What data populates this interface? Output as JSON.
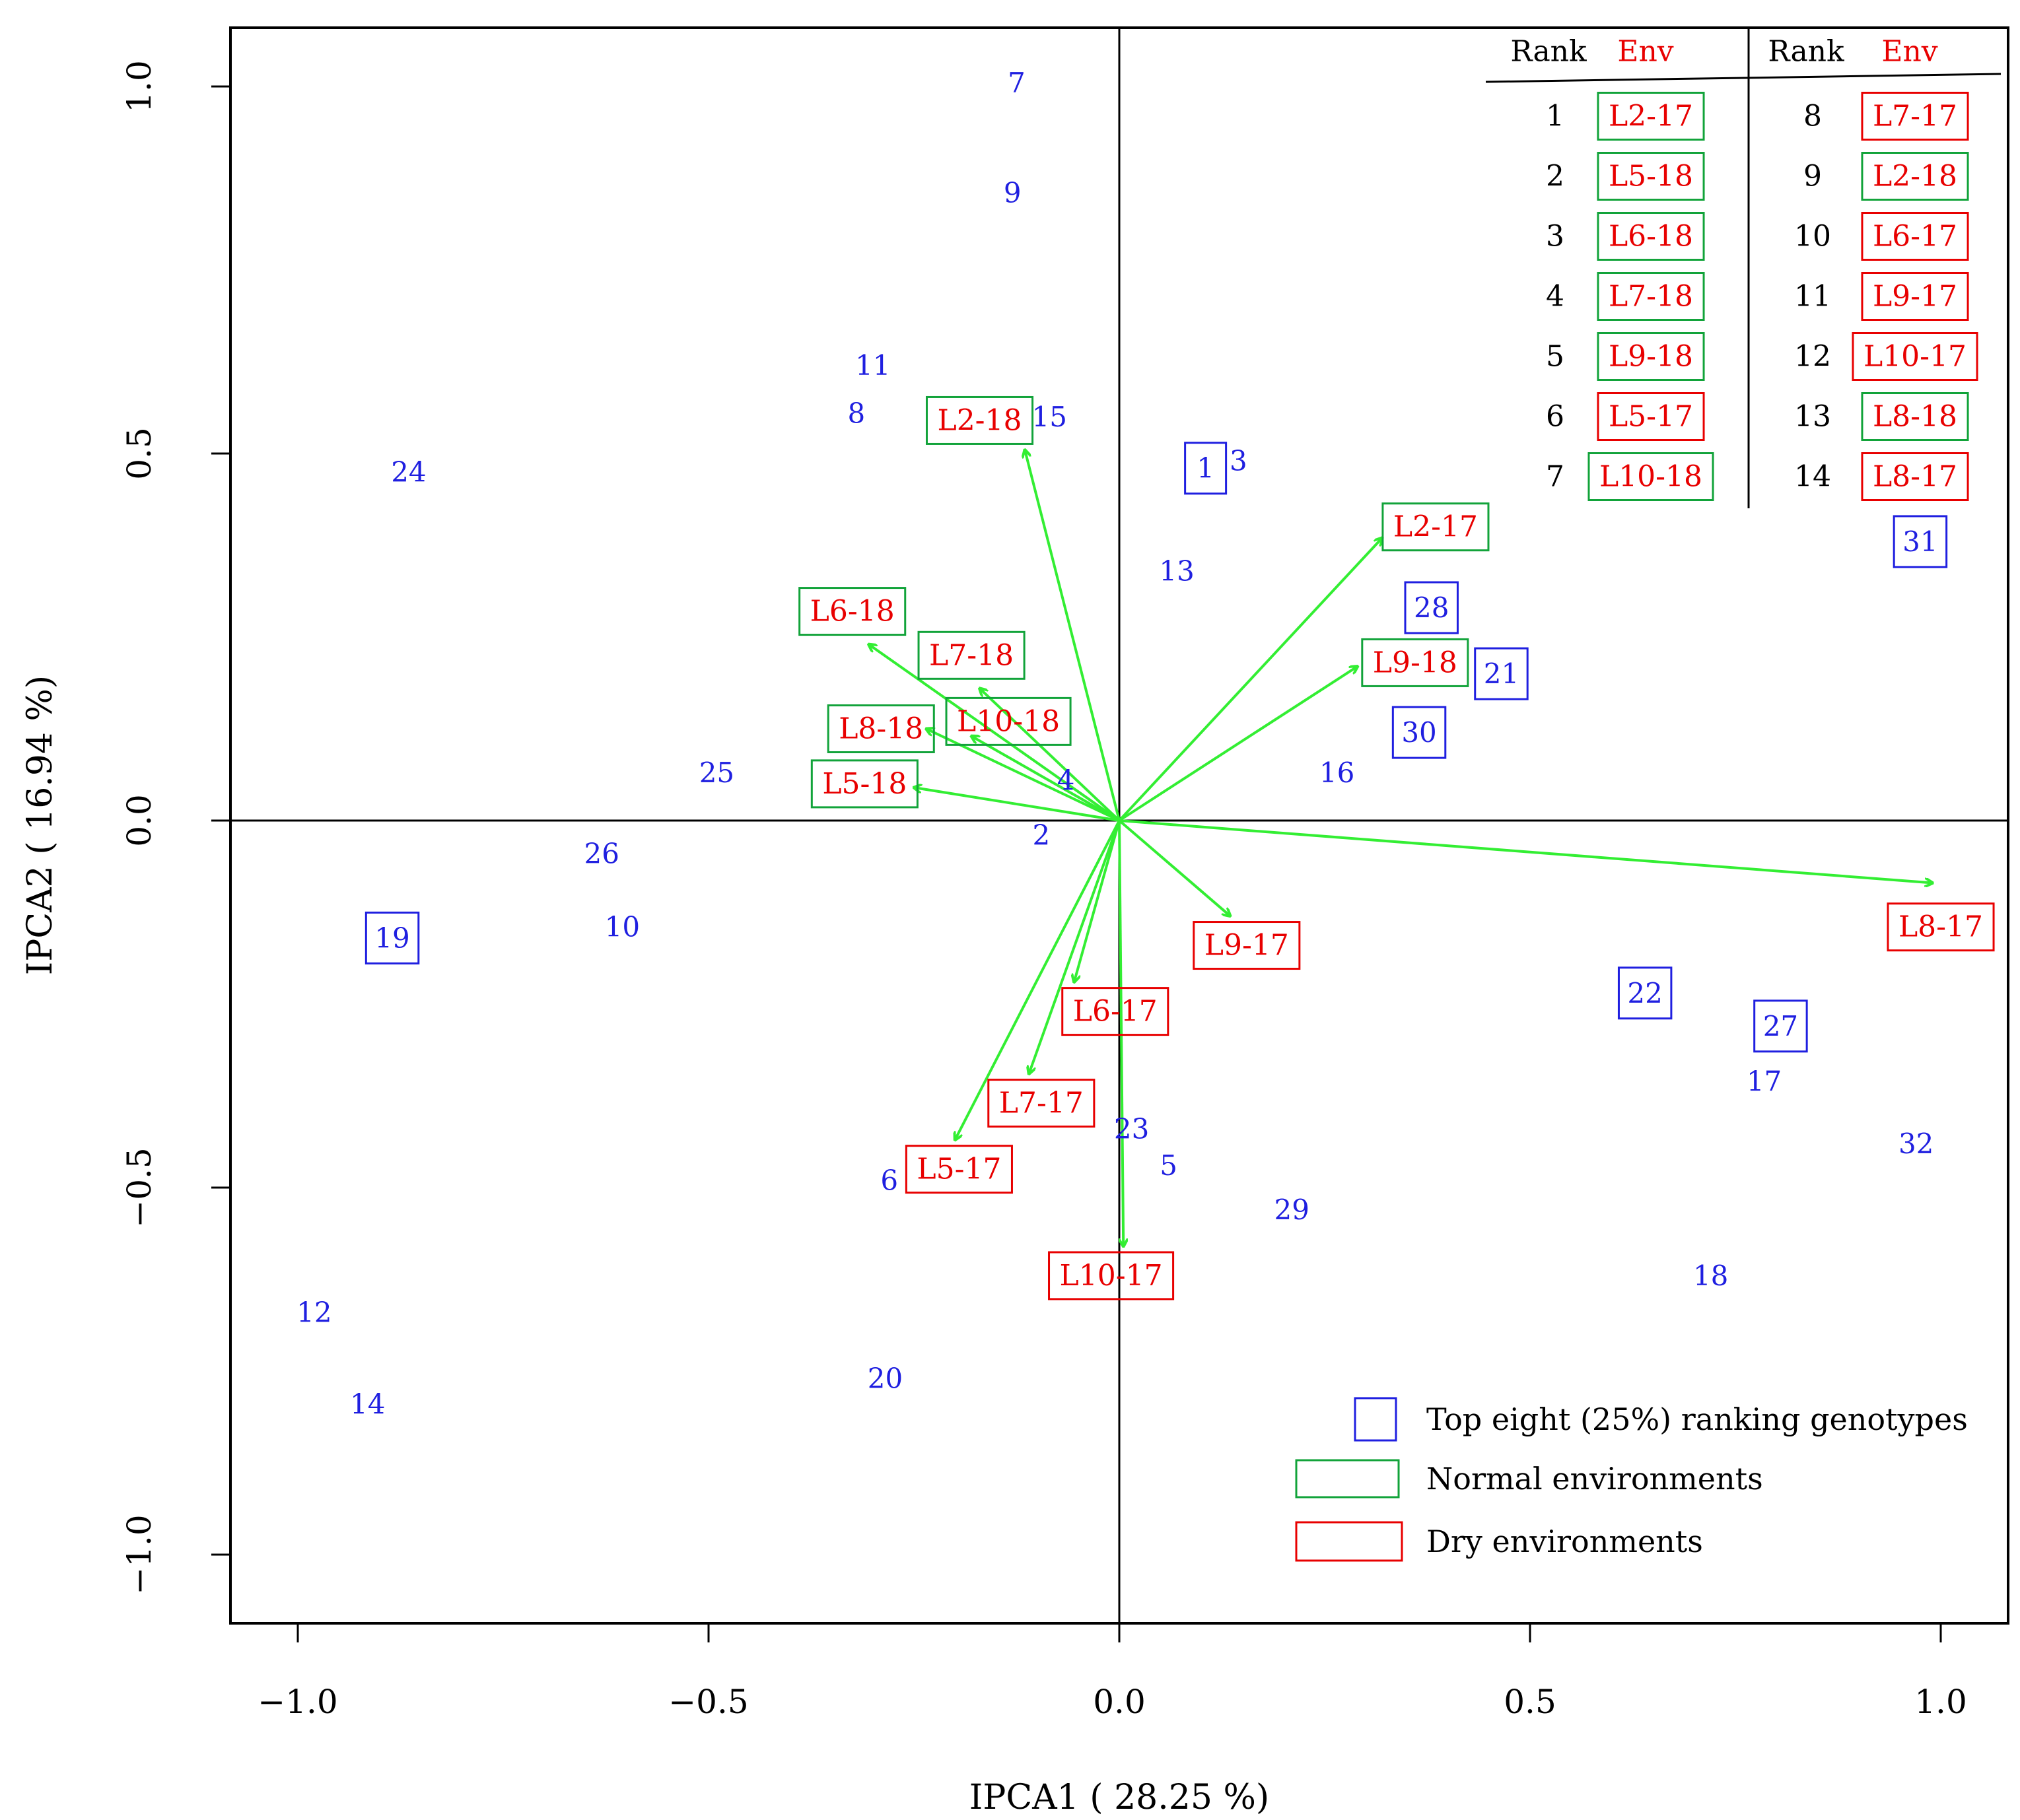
{
  "chart_data": {
    "type": "scatter",
    "subtype": "AMMI biplot",
    "xlabel": "IPCA1 ( 28.25 %)",
    "ylabel": "IPCA2 ( 16.94 %)",
    "xlim": [
      -1.08,
      1.08
    ],
    "ylim": [
      -1.08,
      1.08
    ],
    "xticks": [
      -1.0,
      -0.5,
      0.0,
      0.5,
      1.0
    ],
    "xtick_labels": [
      "−1.0",
      "−0.5",
      "0.0",
      "0.5",
      "1.0"
    ],
    "yticks": [
      -1.0,
      -0.5,
      0.0,
      0.5,
      1.0
    ],
    "ytick_labels": [
      "−1.0",
      "−0.5",
      "0.0",
      "0.5",
      "1.0"
    ],
    "genotypes": [
      {
        "label": "1",
        "x": 0.105,
        "y": 0.48,
        "top": true
      },
      {
        "label": "2",
        "x": -0.095,
        "y": -0.02,
        "top": false
      },
      {
        "label": "3",
        "x": 0.145,
        "y": 0.49,
        "top": false
      },
      {
        "label": "4",
        "x": -0.065,
        "y": 0.055,
        "top": false
      },
      {
        "label": "5",
        "x": 0.06,
        "y": -0.47,
        "top": false
      },
      {
        "label": "6",
        "x": -0.28,
        "y": -0.49,
        "top": false
      },
      {
        "label": "7",
        "x": -0.125,
        "y": 1.005,
        "top": false
      },
      {
        "label": "8",
        "x": -0.32,
        "y": 0.555,
        "top": false
      },
      {
        "label": "9",
        "x": -0.13,
        "y": 0.855,
        "top": false
      },
      {
        "label": "10",
        "x": -0.605,
        "y": -0.145,
        "top": false
      },
      {
        "label": "11",
        "x": -0.3,
        "y": 0.62,
        "top": false
      },
      {
        "label": "12",
        "x": -0.98,
        "y": -0.67,
        "top": false
      },
      {
        "label": "13",
        "x": 0.07,
        "y": 0.34,
        "top": false
      },
      {
        "label": "14",
        "x": -0.915,
        "y": -0.795,
        "top": false
      },
      {
        "label": "15",
        "x": -0.085,
        "y": 0.55,
        "top": false
      },
      {
        "label": "16",
        "x": 0.265,
        "y": 0.065,
        "top": false
      },
      {
        "label": "17",
        "x": 0.785,
        "y": -0.355,
        "top": false
      },
      {
        "label": "18",
        "x": 0.72,
        "y": -0.62,
        "top": false
      },
      {
        "label": "19",
        "x": -0.885,
        "y": -0.16,
        "top": true
      },
      {
        "label": "20",
        "x": -0.285,
        "y": -0.76,
        "top": false
      },
      {
        "label": "21",
        "x": 0.465,
        "y": 0.2,
        "top": true
      },
      {
        "label": "22",
        "x": 0.64,
        "y": -0.235,
        "top": true
      },
      {
        "label": "23",
        "x": 0.015,
        "y": -0.42,
        "top": false
      },
      {
        "label": "24",
        "x": -0.865,
        "y": 0.475,
        "top": false
      },
      {
        "label": "25",
        "x": -0.49,
        "y": 0.065,
        "top": false
      },
      {
        "label": "26",
        "x": -0.63,
        "y": -0.045,
        "top": false
      },
      {
        "label": "27",
        "x": 0.805,
        "y": -0.28,
        "top": true
      },
      {
        "label": "28",
        "x": 0.38,
        "y": 0.29,
        "top": true
      },
      {
        "label": "29",
        "x": 0.21,
        "y": -0.53,
        "top": false
      },
      {
        "label": "30",
        "x": 0.365,
        "y": 0.12,
        "top": true
      },
      {
        "label": "31",
        "x": 0.975,
        "y": 0.38,
        "top": true
      },
      {
        "label": "32",
        "x": 0.97,
        "y": -0.44,
        "top": false
      }
    ],
    "environments": [
      {
        "label": "L2-17",
        "type": "normal",
        "x": 0.32,
        "y": 0.385,
        "lx": 0.385,
        "ly": 0.4
      },
      {
        "label": "L2-18",
        "type": "normal",
        "x": -0.115,
        "y": 0.505,
        "lx": -0.17,
        "ly": 0.545
      },
      {
        "label": "L5-18",
        "type": "normal",
        "x": -0.25,
        "y": 0.045,
        "lx": -0.31,
        "ly": 0.05
      },
      {
        "label": "L6-18",
        "type": "normal",
        "x": -0.305,
        "y": 0.24,
        "lx": -0.325,
        "ly": 0.285
      },
      {
        "label": "L7-18",
        "type": "normal",
        "x": -0.17,
        "y": 0.18,
        "lx": -0.18,
        "ly": 0.225
      },
      {
        "label": "L9-18",
        "type": "normal",
        "x": 0.29,
        "y": 0.21,
        "lx": 0.36,
        "ly": 0.215
      },
      {
        "label": "L10-18",
        "type": "normal",
        "x": -0.18,
        "y": 0.115,
        "lx": -0.135,
        "ly": 0.135
      },
      {
        "label": "L5-17",
        "type": "dry",
        "x": -0.2,
        "y": -0.435,
        "lx": -0.195,
        "ly": -0.475
      },
      {
        "label": "L6-17",
        "type": "dry",
        "x": -0.055,
        "y": -0.22,
        "lx": -0.005,
        "ly": -0.26
      },
      {
        "label": "L7-17",
        "type": "dry",
        "x": -0.11,
        "y": -0.345,
        "lx": -0.095,
        "ly": -0.385
      },
      {
        "label": "L8-17",
        "type": "dry",
        "x": 0.99,
        "y": -0.085,
        "lx": 1.0,
        "ly": -0.145
      },
      {
        "label": "L9-17",
        "type": "dry",
        "x": 0.135,
        "y": -0.13,
        "lx": 0.155,
        "ly": -0.17
      },
      {
        "label": "L10-17",
        "type": "dry",
        "x": 0.005,
        "y": -0.58,
        "lx": -0.01,
        "ly": -0.62
      },
      {
        "label": "L8-18",
        "type": "normal",
        "x": -0.235,
        "y": 0.125,
        "lx": -0.29,
        "ly": 0.125
      }
    ],
    "ranking_table": {
      "header_rank": "Rank",
      "header_env": "Env",
      "rows": [
        {
          "rank": "1",
          "env": "L2-17",
          "type": "normal"
        },
        {
          "rank": "2",
          "env": "L5-18",
          "type": "normal"
        },
        {
          "rank": "3",
          "env": "L6-18",
          "type": "normal"
        },
        {
          "rank": "4",
          "env": "L7-18",
          "type": "normal"
        },
        {
          "rank": "5",
          "env": "L9-18",
          "type": "normal"
        },
        {
          "rank": "6",
          "env": "L5-17",
          "type": "dry"
        },
        {
          "rank": "7",
          "env": "L10-18",
          "type": "normal"
        },
        {
          "rank": "8",
          "env": "L7-17",
          "type": "dry"
        },
        {
          "rank": "9",
          "env": "L2-18",
          "type": "normal"
        },
        {
          "rank": "10",
          "env": "L6-17",
          "type": "dry"
        },
        {
          "rank": "11",
          "env": "L9-17",
          "type": "dry"
        },
        {
          "rank": "12",
          "env": "L10-17",
          "type": "dry"
        },
        {
          "rank": "13",
          "env": "L8-18",
          "type": "normal"
        },
        {
          "rank": "14",
          "env": "L8-17",
          "type": "dry"
        }
      ]
    },
    "legend": {
      "placement": "bottom-right",
      "items": [
        {
          "label": "Top eight (25%) ranking  genotypes",
          "kind": "top"
        },
        {
          "label": "Normal environments",
          "kind": "normal"
        },
        {
          "label": "Dry environments",
          "kind": "dry"
        }
      ]
    },
    "colors": {
      "genotype": "#1f1fe0",
      "top_box": "#1f1fe0",
      "env_text": "#e80000",
      "normal_box": "#12a33a",
      "dry_box": "#e80000",
      "arrow": "#33ee33",
      "axis": "#000000"
    }
  }
}
